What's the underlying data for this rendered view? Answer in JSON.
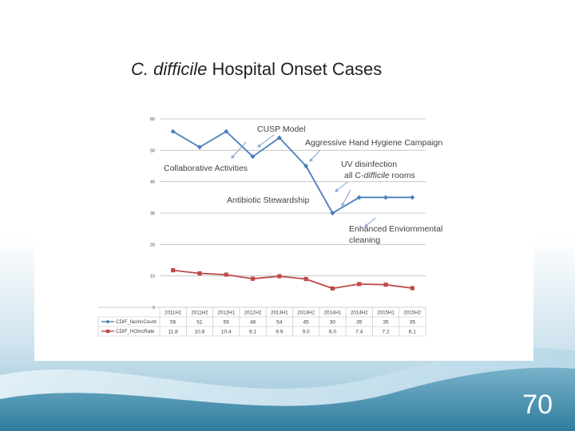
{
  "slide": {
    "page_number": "70"
  },
  "colors": {
    "series1": "#4a7ebb",
    "series2": "#be4b48",
    "arrow": "#7f9fcf",
    "text": "#404040",
    "grid": "#bfbfbf",
    "bg_gradient_top": "#dcecf4",
    "bg_gradient_bottom": "#3f8cab"
  },
  "chart_data": {
    "type": "line",
    "title_italic": "C. difficile",
    "title_rest": " Hospital Onset Cases",
    "categories": [
      "2011H1",
      "2011H2",
      "2012H1",
      "2012H2",
      "2013H1",
      "2013H2",
      "2014H1",
      "2014H2",
      "2015H1",
      "2015H2"
    ],
    "yticks": [
      "0",
      "10",
      "20",
      "30",
      "40",
      "50",
      "60"
    ],
    "ylim": [
      0,
      60
    ],
    "grid": true,
    "legend": "bottom (data table)",
    "series": [
      {
        "name": "CDIF_facIncCount",
        "values": [
          56,
          51,
          56,
          48,
          54,
          45,
          30,
          35,
          35,
          35
        ],
        "table_values": [
          "56",
          "51",
          "56",
          "48",
          "54",
          "45",
          "30",
          "35",
          "35",
          "35"
        ],
        "marker": "diamond"
      },
      {
        "name": "CDIF_HOIncRate",
        "values": [
          11.8,
          10.8,
          10.4,
          9.1,
          9.9,
          9.0,
          6.0,
          7.4,
          7.2,
          6.1
        ],
        "table_values": [
          "11.8",
          "10.8",
          "10.4",
          "9.1",
          "9.9",
          "9.0",
          "6.0",
          "7.4",
          "7.2",
          "6.1"
        ],
        "marker": "square"
      }
    ],
    "annotations": [
      {
        "id": "cusp",
        "lines": [
          "CUSP Model"
        ]
      },
      {
        "id": "hygiene",
        "lines": [
          "Aggressive Hand Hygiene Campaign"
        ]
      },
      {
        "id": "collab",
        "lines": [
          "Collaborative Activities"
        ]
      },
      {
        "id": "uv",
        "lines": [
          "UV disinfection",
          "all C-difficile rooms"
        ]
      },
      {
        "id": "abx",
        "lines": [
          "Antibiotic Stewardship"
        ]
      },
      {
        "id": "enhanced",
        "lines": [
          "Enhanced  Enviornmental",
          "cleaning"
        ]
      }
    ]
  }
}
